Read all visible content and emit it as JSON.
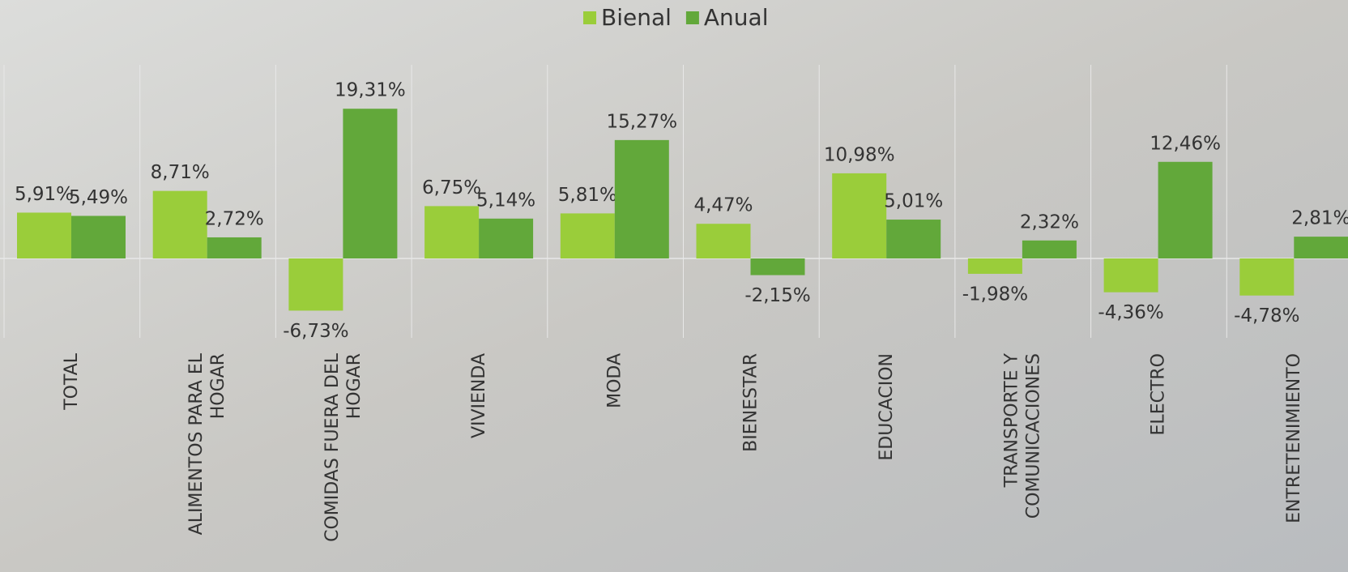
{
  "chart_data": {
    "type": "bar",
    "categories": [
      "TOTAL",
      "ALIMENTOS PARA EL HOGAR",
      "COMIDAS FUERA DEL HOGAR",
      "VIVIENDA",
      "MODA",
      "BIENESTAR",
      "EDUCACION",
      "TRANSPORTE Y COMUNICACIONES",
      "ELECTRO",
      "ENTRETENIMIENTO"
    ],
    "series": [
      {
        "name": "Bienal",
        "color": "#9acd3a",
        "values": [
          5.91,
          8.71,
          -6.73,
          6.75,
          5.81,
          4.47,
          10.98,
          -1.98,
          -4.36,
          -4.78
        ],
        "value_labels": [
          "5,91%",
          "8,71%",
          "-6,73%",
          "6,75%",
          "5,81%",
          "4,47%",
          "10,98%",
          "-1,98%",
          "-4,36%",
          "-4,78%"
        ]
      },
      {
        "name": "Anual",
        "color": "#62a83a",
        "values": [
          5.49,
          2.72,
          19.31,
          5.14,
          15.27,
          -2.15,
          5.01,
          2.32,
          12.46,
          2.81
        ],
        "value_labels": [
          "5,49%",
          "2,72%",
          "19,31%",
          "5,14%",
          "15,27%",
          "-2,15%",
          "5,01%",
          "2,32%",
          "12,46%",
          "2,81%"
        ]
      }
    ],
    "legend": "top"
  }
}
